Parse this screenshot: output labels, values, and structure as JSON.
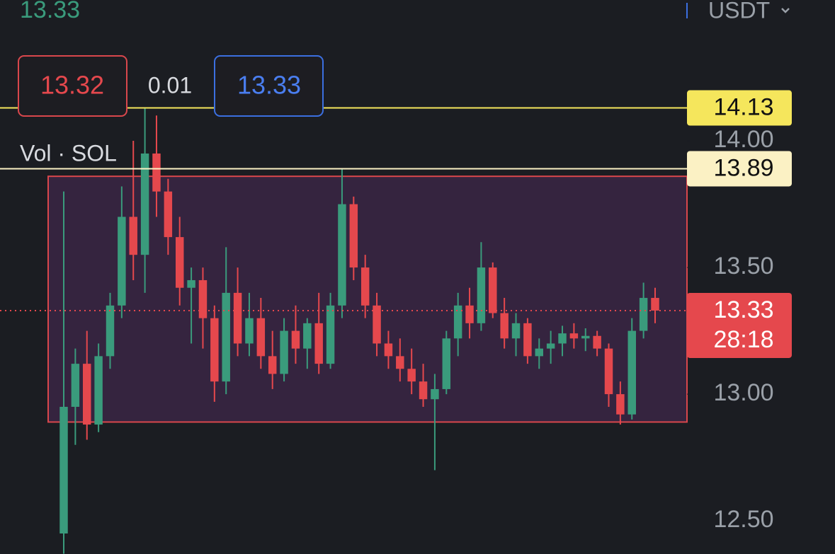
{
  "chart_data": {
    "type": "candlestick",
    "last_trade": "13.33",
    "currency": "USDT",
    "bid": "13.32",
    "spread": "0.01",
    "ask": "13.33",
    "volume_label": "Vol · SOL",
    "ylim": [
      12.369,
      14.556
    ],
    "yticks": [
      {
        "value": 12.5,
        "label": "12.50"
      },
      {
        "value": 13,
        "label": "13.00"
      },
      {
        "value": 13.5,
        "label": "13.50"
      },
      {
        "value": 14,
        "label": "14.00"
      }
    ],
    "up_color": "#3a9b7c",
    "down_color": "#e5484d",
    "zone": [
      12.89,
      13.86
    ],
    "hlines": [
      {
        "value": 14.13,
        "color": "#f5e65c"
      },
      {
        "value": 13.89,
        "color": "#fbf1c4"
      }
    ],
    "last_price": 13.33,
    "countdown": "28:18",
    "open": [
      12.45,
      12.95,
      13.12,
      12.88,
      13.15,
      13.35,
      13.7,
      13.55,
      13.95,
      13.8,
      13.62,
      13.42,
      13.45,
      13.3,
      13.05,
      13.4,
      13.2,
      13.3,
      13.15,
      13.08,
      13.25,
      13.18,
      13.28,
      13.12,
      13.35,
      13.75,
      13.5,
      13.35,
      13.2,
      13.15,
      13.1,
      13.05,
      12.98,
      13.02,
      13.22,
      13.35,
      13.28,
      13.5,
      13.32,
      13.22,
      13.28,
      13.15,
      13.18,
      13.2,
      13.24,
      13.22,
      13.23,
      13.18,
      13.0,
      12.92,
      13.25,
      13.38
    ],
    "high": [
      13.8,
      13.18,
      13.25,
      13.2,
      13.4,
      13.82,
      14.0,
      14.13,
      14.1,
      13.85,
      13.7,
      13.5,
      13.5,
      13.35,
      13.58,
      13.5,
      13.4,
      13.38,
      13.25,
      13.3,
      13.35,
      13.3,
      13.4,
      13.4,
      13.89,
      13.78,
      13.55,
      13.4,
      13.25,
      13.22,
      13.18,
      13.12,
      13.08,
      13.25,
      13.4,
      13.42,
      13.6,
      13.52,
      13.38,
      13.32,
      13.3,
      13.22,
      13.25,
      13.27,
      13.28,
      13.26,
      13.25,
      13.2,
      13.05,
      13.3,
      13.44,
      13.42
    ],
    "low": [
      12.37,
      12.8,
      12.82,
      12.85,
      13.1,
      13.3,
      13.45,
      13.4,
      13.7,
      13.55,
      13.35,
      13.2,
      13.18,
      12.97,
      13.0,
      13.15,
      13.15,
      13.1,
      13.02,
      13.05,
      13.12,
      13.1,
      13.08,
      13.1,
      13.3,
      13.45,
      13.3,
      13.15,
      13.1,
      13.05,
      13.0,
      12.95,
      12.7,
      13.0,
      13.15,
      13.22,
      13.25,
      13.3,
      13.18,
      13.15,
      13.12,
      13.1,
      13.12,
      13.15,
      13.18,
      13.17,
      13.15,
      12.95,
      12.88,
      12.9,
      13.22,
      13.28
    ],
    "close": [
      12.95,
      13.12,
      12.88,
      13.15,
      13.35,
      13.7,
      13.55,
      13.95,
      13.8,
      13.62,
      13.42,
      13.45,
      13.3,
      13.05,
      13.4,
      13.2,
      13.3,
      13.15,
      13.08,
      13.25,
      13.18,
      13.28,
      13.12,
      13.35,
      13.75,
      13.5,
      13.35,
      13.2,
      13.15,
      13.1,
      13.05,
      12.98,
      13.02,
      13.22,
      13.35,
      13.28,
      13.5,
      13.32,
      13.22,
      13.28,
      13.15,
      13.18,
      13.2,
      13.24,
      13.22,
      13.23,
      13.18,
      13.0,
      12.92,
      13.25,
      13.38,
      13.33
    ]
  }
}
